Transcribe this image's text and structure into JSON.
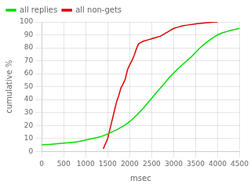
{
  "chart_data": {
    "type": "line",
    "xlabel": "msec",
    "ylabel": "cumulative %",
    "xlim": [
      0,
      4500
    ],
    "ylim": [
      0,
      100
    ],
    "xticks": [
      0,
      500,
      1000,
      1500,
      2000,
      2500,
      3000,
      3500,
      4000,
      4500
    ],
    "yticks": [
      0,
      10,
      20,
      30,
      40,
      50,
      60,
      70,
      80,
      90,
      100
    ],
    "grid": true,
    "legend": "upper left",
    "series": [
      {
        "name": "all replies",
        "color": "#00dd00",
        "x": [
          0,
          100,
          200,
          300,
          400,
          500,
          600,
          700,
          800,
          900,
          1000,
          1100,
          1200,
          1300,
          1400,
          1500,
          1600,
          1700,
          1800,
          1900,
          2000,
          2100,
          2200,
          2300,
          2400,
          2500,
          2600,
          2700,
          2800,
          2900,
          3000,
          3100,
          3200,
          3300,
          3400,
          3500,
          3600,
          3700,
          3800,
          3900,
          4000,
          4100,
          4200,
          4300,
          4400,
          4500
        ],
        "values": [
          5,
          5.2,
          5.4,
          5.7,
          6.0,
          6.3,
          6.6,
          7.0,
          7.4,
          8.0,
          8.8,
          9.5,
          10.2,
          11.0,
          12.0,
          13.5,
          15.0,
          16.5,
          18.5,
          20.5,
          23.0,
          26.0,
          29.5,
          33.0,
          37.0,
          41.0,
          45.0,
          49.0,
          53.0,
          57.0,
          60.5,
          64.0,
          67.0,
          70.0,
          73.0,
          76.5,
          80.0,
          83.0,
          85.5,
          88.0,
          90.0,
          91.5,
          92.5,
          93.5,
          94.2,
          95.0
        ]
      },
      {
        "name": "all non-gets",
        "color": "#dd0000",
        "x": [
          1400,
          1500,
          1550,
          1600,
          1650,
          1700,
          1750,
          1800,
          1850,
          1900,
          1950,
          2000,
          2050,
          2100,
          2150,
          2200,
          2250,
          2300,
          2400,
          2500,
          2600,
          2700,
          2800,
          2900,
          3000,
          3100,
          3200,
          3300,
          3500,
          3700,
          3900,
          4000
        ],
        "values": [
          2,
          10,
          17,
          24,
          31,
          38,
          43,
          49,
          52,
          56,
          63,
          67,
          70,
          74,
          79,
          83,
          84,
          85,
          86,
          87,
          88,
          89,
          91,
          93,
          95,
          96,
          97,
          97.5,
          98.5,
          99.2,
          99.8,
          100
        ]
      }
    ]
  }
}
